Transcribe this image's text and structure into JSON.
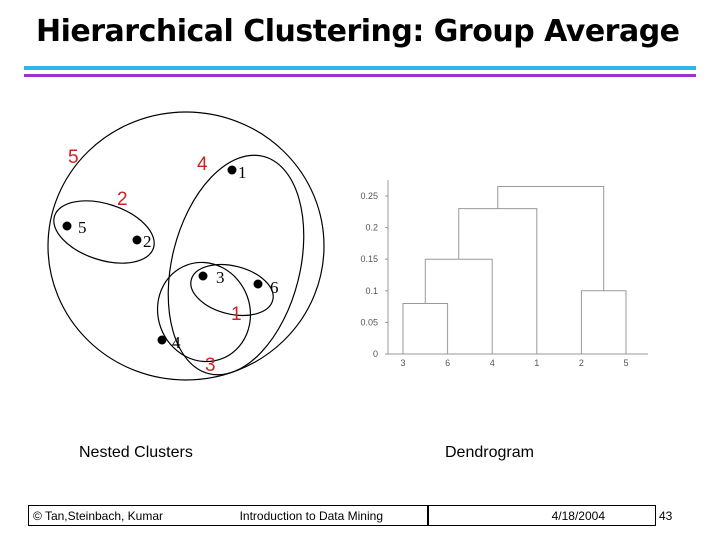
{
  "slide": {
    "title": "Hierarchical Clustering: Group Average",
    "captions": {
      "left": "Nested Clusters",
      "right": "Dendrogram"
    },
    "footer": {
      "author": "© Tan,Steinbach, Kumar",
      "course": "Introduction to Data Mining",
      "date": "4/18/2004",
      "page": "43"
    }
  },
  "nested_clusters": {
    "points": [
      {
        "id": "1",
        "label": "1"
      },
      {
        "id": "2",
        "label": "2"
      },
      {
        "id": "3",
        "label": "3"
      },
      {
        "id": "4",
        "label": "4"
      },
      {
        "id": "5",
        "label": "5"
      },
      {
        "id": "6",
        "label": "6"
      }
    ],
    "cluster_labels": [
      "5",
      "4",
      "2",
      "1",
      "3"
    ]
  },
  "chart_data": {
    "type": "dendrogram",
    "leaves": [
      "3",
      "6",
      "4",
      "1",
      "2",
      "5"
    ],
    "yticks": [
      "0.25",
      "0.2",
      "0.15",
      "0.1",
      "0.05",
      "0"
    ],
    "ylim": [
      0,
      0.25
    ],
    "merges": [
      {
        "left": "3",
        "right": "6",
        "height": 0.08
      },
      {
        "left": "2",
        "right": "5",
        "height": 0.1
      },
      {
        "left": "3,6",
        "right": "4",
        "height": 0.15
      },
      {
        "left": "3,6,4",
        "right": "1",
        "height": 0.23
      },
      {
        "left": "3,6,4,1",
        "right": "2,5",
        "height": 0.265
      }
    ],
    "colors": {
      "line": "#999999",
      "axis": "#999999",
      "tick_text": "#555555"
    }
  },
  "colors": {
    "cluster_label": "#cc2222",
    "title_rule_top": "#33b5e8",
    "title_rule_bottom": "#9933cc"
  }
}
